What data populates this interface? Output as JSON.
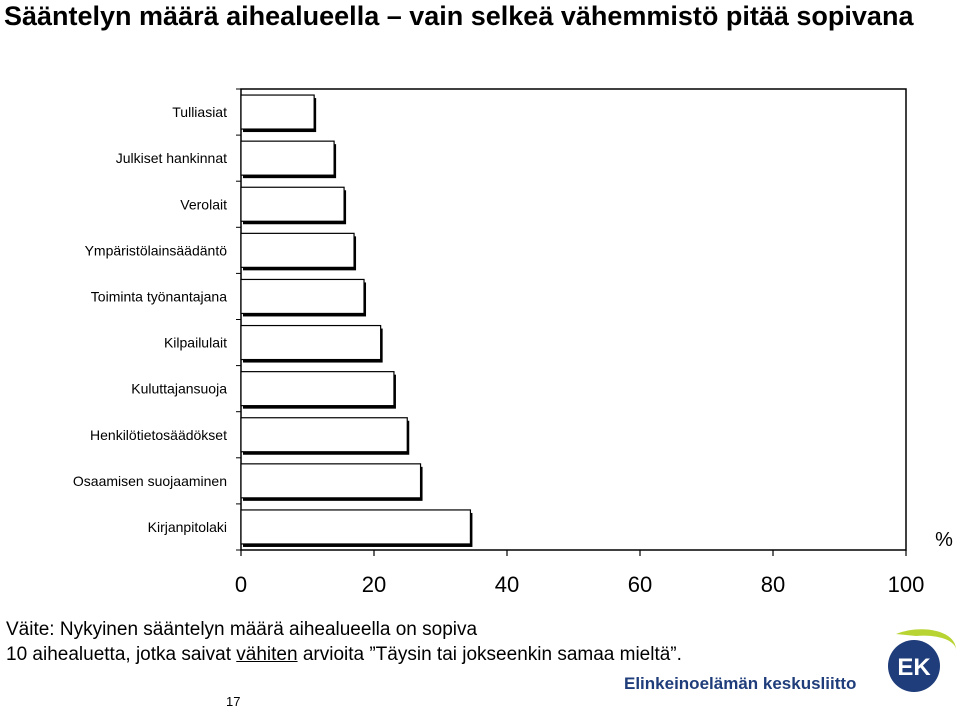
{
  "title": "Sääntelyn määrä aihealueella – vain selkeä vähemmistö pitää sopivana",
  "chart_data": {
    "type": "bar",
    "orientation": "horizontal",
    "categories": [
      "Tulliasiat",
      "Julkiset hankinnat",
      "Verolait",
      "Ympäristölainsäädäntö",
      "Toiminta työnantajana",
      "Kilpailulait",
      "Kuluttajansuoja",
      "Henkilötietosäädökset",
      "Osaamisen suojaaminen",
      "Kirjanpitolaki"
    ],
    "values": [
      11,
      14,
      15.5,
      17,
      18.5,
      21,
      23,
      25,
      27,
      34.5
    ],
    "xlim": [
      0,
      100
    ],
    "xticks": [
      "0",
      "20",
      "40",
      "60",
      "80",
      "100"
    ],
    "unit_label": "%",
    "bar_color": "#ffffff",
    "bar_shadow_color": "#000000",
    "grid": false
  },
  "caption": {
    "line1": "Väite: Nykyinen sääntelyn määrä aihealueella on sopiva",
    "line2_before": "10 aihealuetta, jotka saivat ",
    "line2_underlined": "vähiten",
    "line2_after": " arvioita ”Täysin tai jokseenkin samaa mieltä”."
  },
  "page_number": "17",
  "footer": {
    "org_name": "Elinkeinoelämän keskusliitto",
    "logo_text": "EK",
    "logo_colors": {
      "blue": "#1f3d7a",
      "green": "#b7d433"
    }
  }
}
